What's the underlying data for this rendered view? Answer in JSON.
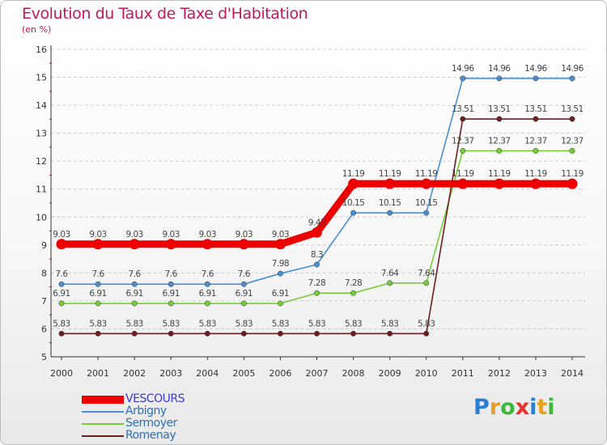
{
  "title": "Evolution du Taux de Taxe d'Habitation",
  "unit_label": "(en %)",
  "logo": {
    "letters": [
      {
        "ch": "P",
        "color": "#2a7fd4"
      },
      {
        "ch": "r",
        "color": "#e8a020"
      },
      {
        "ch": "o",
        "color": "#3db83d"
      },
      {
        "ch": "x",
        "color": "#e83030"
      },
      {
        "ch": "i",
        "color": "#2a7fd4"
      },
      {
        "ch": "t",
        "color": "#e8a020"
      },
      {
        "ch": "i",
        "color": "#3db83d"
      }
    ]
  },
  "chart_data": {
    "type": "line",
    "title": "Evolution du Taux de Taxe d'Habitation",
    "ylabel": "(en %)",
    "xlabel": "",
    "ylim": [
      5,
      16
    ],
    "yticks": [
      5,
      6,
      7,
      8,
      9,
      10,
      11,
      12,
      13,
      14,
      15,
      16
    ],
    "x": [
      "2000",
      "2001",
      "2002",
      "2003",
      "2004",
      "2005",
      "2006",
      "2007",
      "2008",
      "2009",
      "2010",
      "2011",
      "2012",
      "2013",
      "2014"
    ],
    "grid": "horizontal dashed",
    "legend_position": "bottom-left",
    "series": [
      {
        "name": "VESCOURS",
        "color": "#ee0000",
        "style": "thick",
        "values": [
          9.03,
          9.03,
          9.03,
          9.03,
          9.03,
          9.03,
          9.03,
          9.45,
          11.19,
          11.19,
          11.19,
          11.19,
          11.19,
          11.19,
          11.19
        ],
        "labels": [
          "9.03",
          "9.03",
          "9.03",
          "9.03",
          "9.03",
          "9.03",
          "9.03",
          "9.45",
          "11.19",
          "11.19",
          "11.19",
          "11.19",
          "11.19",
          "11.19",
          "11.19"
        ]
      },
      {
        "name": "Arbigny",
        "color": "#4a8fd0",
        "style": "thin",
        "values": [
          7.6,
          7.6,
          7.6,
          7.6,
          7.6,
          7.6,
          7.98,
          8.3,
          10.15,
          10.15,
          10.15,
          14.96,
          14.96,
          14.96,
          14.96
        ],
        "labels": [
          "7.6",
          "7.6",
          "7.6",
          "7.6",
          "7.6",
          "7.6",
          "7.98",
          "8.3",
          "10.15",
          "10.15",
          "10.15",
          "14.96",
          "14.96",
          "14.96",
          "14.96"
        ]
      },
      {
        "name": "Sermoyer",
        "color": "#77cc3a",
        "style": "thin",
        "values": [
          6.91,
          6.91,
          6.91,
          6.91,
          6.91,
          6.91,
          6.91,
          7.28,
          7.28,
          7.64,
          7.64,
          12.37,
          12.37,
          12.37,
          12.37
        ],
        "labels": [
          "6.91",
          "6.91",
          "6.91",
          "6.91",
          "6.91",
          "6.91",
          "6.91",
          "7.28",
          "7.28",
          "7.64",
          "7.64",
          "12.37",
          "12.37",
          "12.37",
          "12.37"
        ]
      },
      {
        "name": "Romenay",
        "color": "#6b1f1f",
        "style": "thin",
        "values": [
          5.83,
          5.83,
          5.83,
          5.83,
          5.83,
          5.83,
          5.83,
          5.83,
          5.83,
          5.83,
          5.83,
          13.51,
          13.51,
          13.51,
          13.51
        ],
        "labels": [
          "5.83",
          "5.83",
          "5.83",
          "5.83",
          "5.83",
          "5.83",
          "5.83",
          "5.83",
          "5.83",
          "5.83",
          "5.83",
          "13.51",
          "13.51",
          "13.51",
          "13.51"
        ]
      }
    ]
  }
}
